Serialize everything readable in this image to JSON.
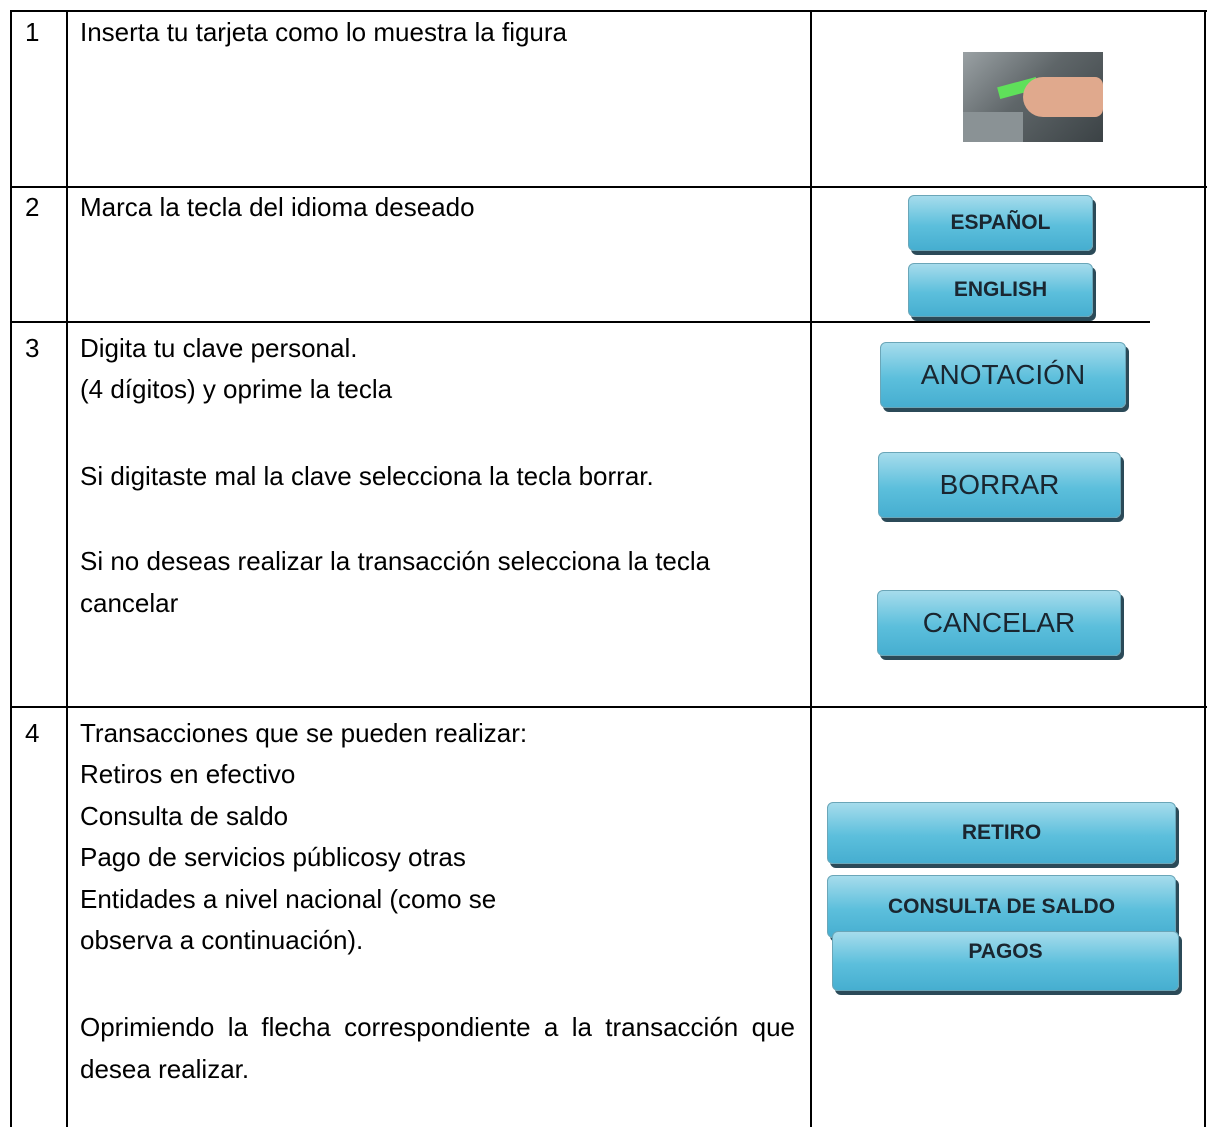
{
  "table": {
    "rows": [
      {
        "number": "1",
        "lines": [
          "Inserta tu tarjeta como lo muestra la figura"
        ],
        "buttons": []
      },
      {
        "number": "2",
        "lines": [
          "Marca la tecla del idioma deseado"
        ],
        "buttons": [
          "ESPAÑOL",
          "ENGLISH"
        ]
      },
      {
        "number": "3",
        "lines": [
          "Digita tu clave personal.",
          "(4 dígitos) y oprime la tecla",
          "Si digitaste mal la clave selecciona la tecla borrar.",
          "Si no deseas realizar la transacción selecciona la tecla cancelar"
        ],
        "buttons": [
          "ANOTACIÓN",
          "BORRAR",
          "CANCELAR"
        ]
      },
      {
        "number": "4",
        "lines": [
          "Transacciones que se pueden realizar:",
          "Retiros en efectivo",
          "Consulta de saldo",
          "Pago de servicios públicosy otras",
          "Entidades a nivel nacional (como se",
          "observa a continuación).",
          "Oprimiendo la flecha correspondiente a la transacción que desea realizar."
        ],
        "buttons": [
          "RETIRO",
          "CONSULTA DE SALDO",
          "PAGOS"
        ]
      }
    ]
  }
}
